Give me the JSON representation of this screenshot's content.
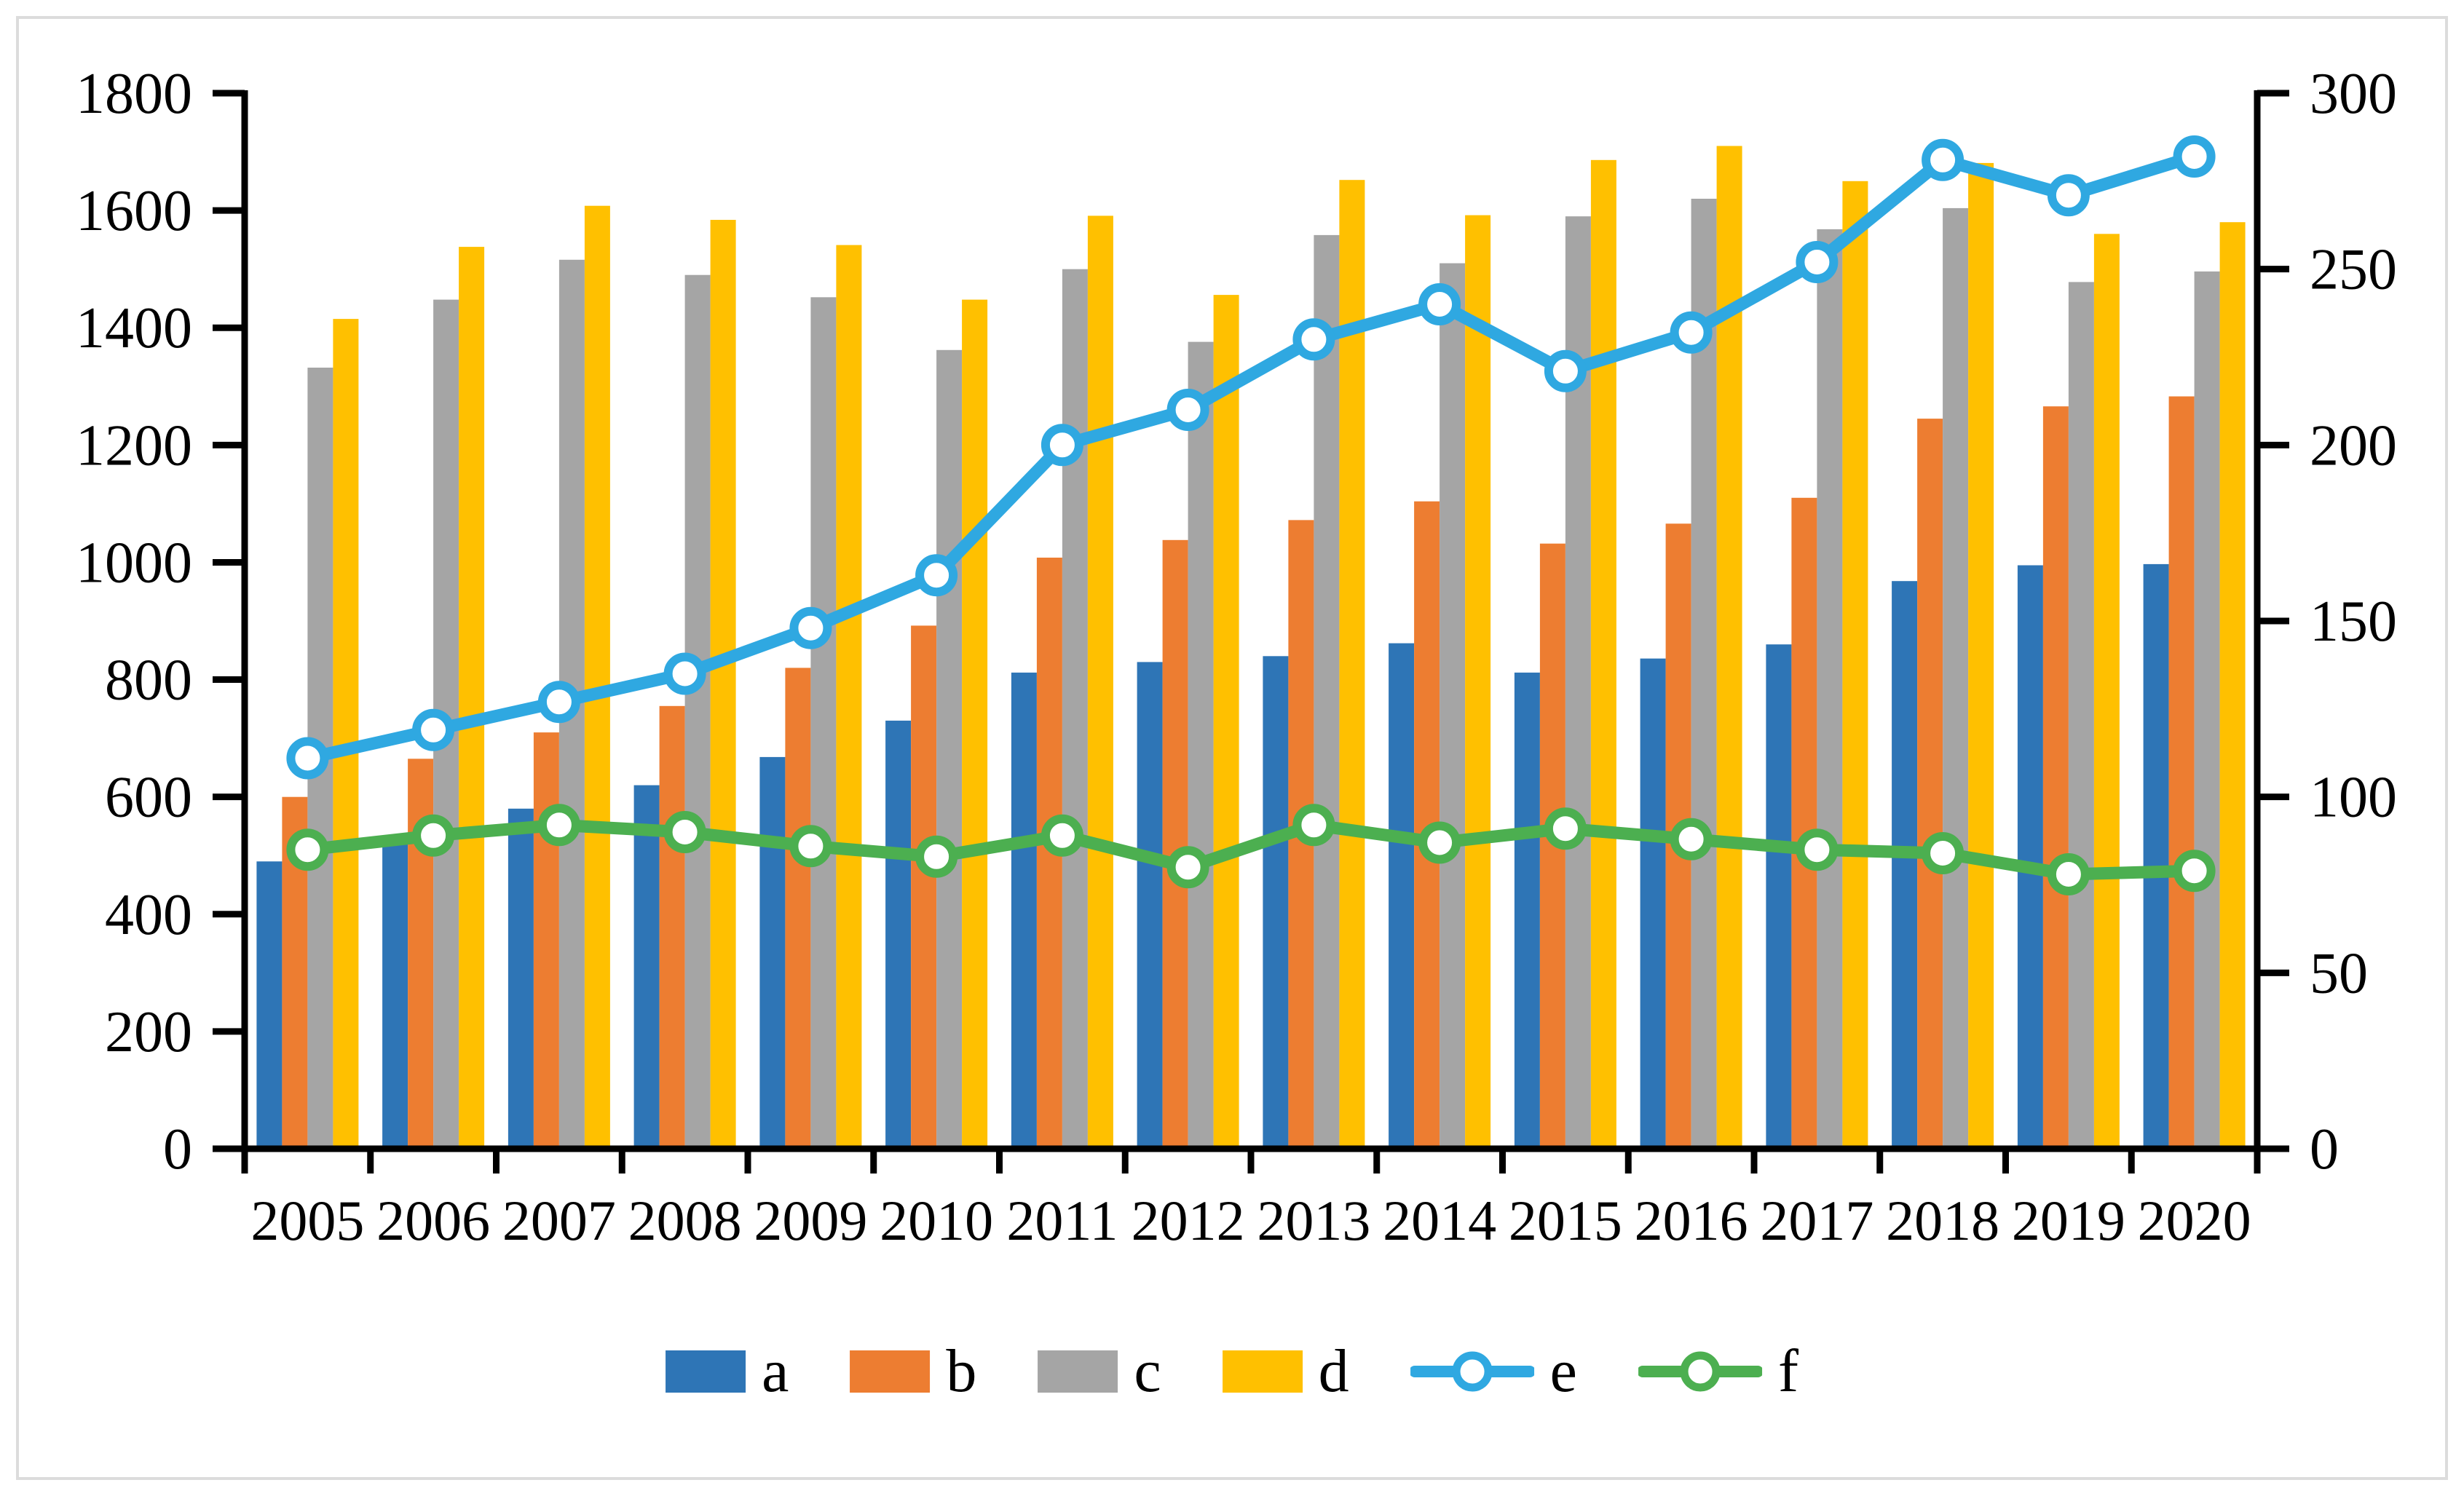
{
  "figure": {
    "background": "#ffffff",
    "border_color": "#dcdcdc"
  },
  "chart_data": {
    "type": "combo-bar-line",
    "title": "",
    "xlabel": "",
    "ylabel_left": "",
    "ylabel_right": "",
    "grid": "off",
    "legend_position": "bottom",
    "categories": [
      2005,
      2006,
      2007,
      2008,
      2009,
      2010,
      2011,
      2012,
      2013,
      2014,
      2015,
      2016,
      2017,
      2018,
      2019,
      2020
    ],
    "left_axis": {
      "min": 0,
      "max": 1800,
      "step": 200,
      "ticks": [
        0,
        200,
        400,
        600,
        800,
        1000,
        1200,
        1400,
        1600,
        1800
      ]
    },
    "right_axis": {
      "min": 0,
      "max": 300,
      "step": 50,
      "ticks": [
        0,
        50,
        100,
        150,
        200,
        250,
        300
      ]
    },
    "series": [
      {
        "name": "a",
        "type": "bar",
        "axis": "left",
        "color": "#2E75B6",
        "values": [
          490,
          530,
          580,
          620,
          668,
          730,
          812,
          830,
          840,
          862,
          812,
          836,
          860,
          968,
          995,
          997
        ]
      },
      {
        "name": "b",
        "type": "bar",
        "axis": "left",
        "color": "#ED7D31",
        "values": [
          600,
          665,
          710,
          755,
          820,
          892,
          1008,
          1038,
          1072,
          1104,
          1032,
          1066,
          1110,
          1245,
          1266,
          1283
        ]
      },
      {
        "name": "c",
        "type": "bar",
        "axis": "left",
        "color": "#A5A5A5",
        "values": [
          1332,
          1448,
          1516,
          1490,
          1452,
          1362,
          1500,
          1376,
          1558,
          1510,
          1590,
          1620,
          1568,
          1604,
          1478,
          1496
        ]
      },
      {
        "name": "d",
        "type": "bar",
        "axis": "left",
        "color": "#FFC000",
        "values": [
          1415,
          1538,
          1608,
          1584,
          1541,
          1448,
          1591,
          1456,
          1652,
          1592,
          1686,
          1710,
          1650,
          1681,
          1560,
          1580
        ]
      },
      {
        "name": "e",
        "type": "line",
        "axis": "right",
        "color": "#2FA8E1",
        "values": [
          111,
          119,
          127,
          135,
          148,
          163,
          200,
          210,
          230,
          240,
          221,
          232,
          252,
          281,
          271,
          282
        ]
      },
      {
        "name": "f",
        "type": "line",
        "axis": "right",
        "color": "#4CAF50",
        "values": [
          85,
          89,
          92,
          90,
          86,
          83,
          89,
          80,
          92,
          87,
          91,
          88,
          85,
          84,
          78,
          79
        ]
      }
    ]
  },
  "legend": {
    "items": [
      {
        "label": "a"
      },
      {
        "label": "b"
      },
      {
        "label": "c"
      },
      {
        "label": "d"
      },
      {
        "label": "e"
      },
      {
        "label": "f"
      }
    ]
  }
}
